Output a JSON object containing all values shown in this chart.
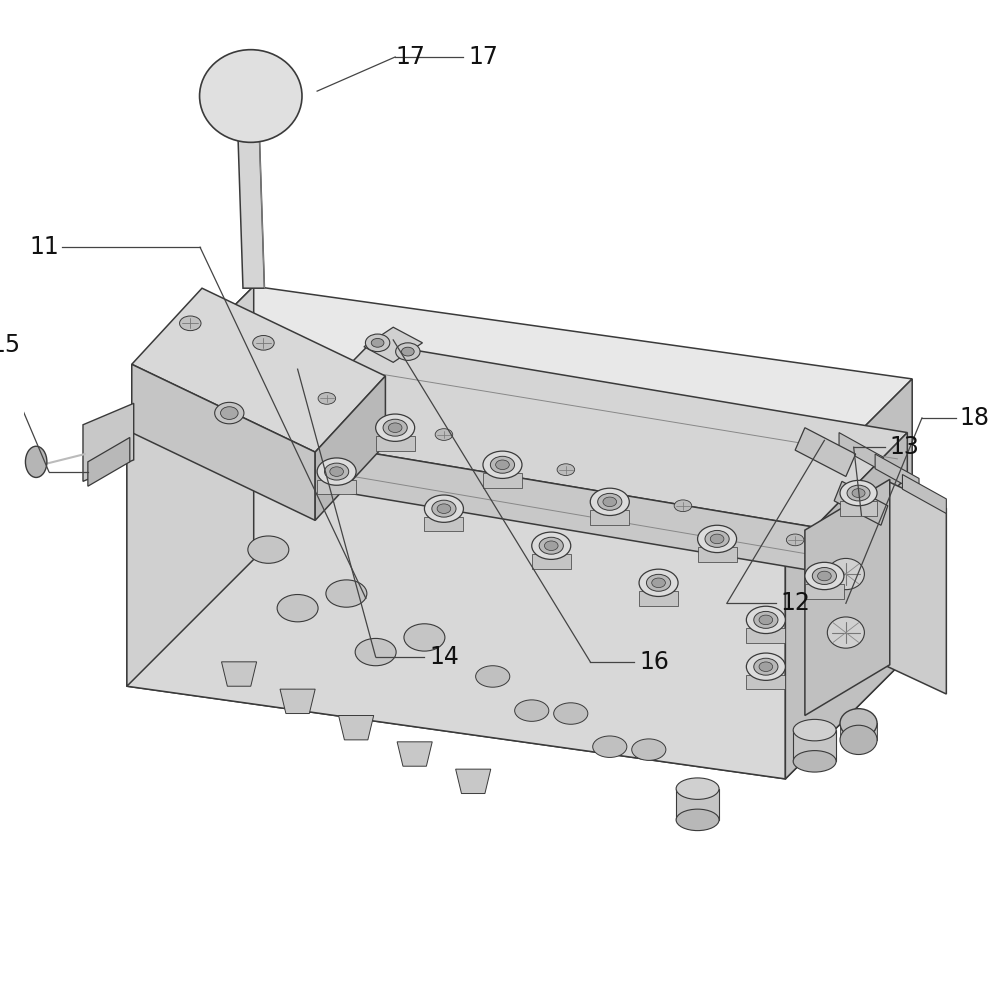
{
  "bg_color": "#ffffff",
  "ec": "#3a3a3a",
  "lw": 1.1,
  "face_top": "#e8e8e8",
  "face_left": "#d0d0d0",
  "face_right": "#c0c0c0",
  "face_front": "#d8d8d8",
  "port_outer_fc": "#e0e0e0",
  "port_inner_fc": "#aaaaaa",
  "label_fs": 17,
  "label_color": "#111111",
  "leader_color": "#444444"
}
